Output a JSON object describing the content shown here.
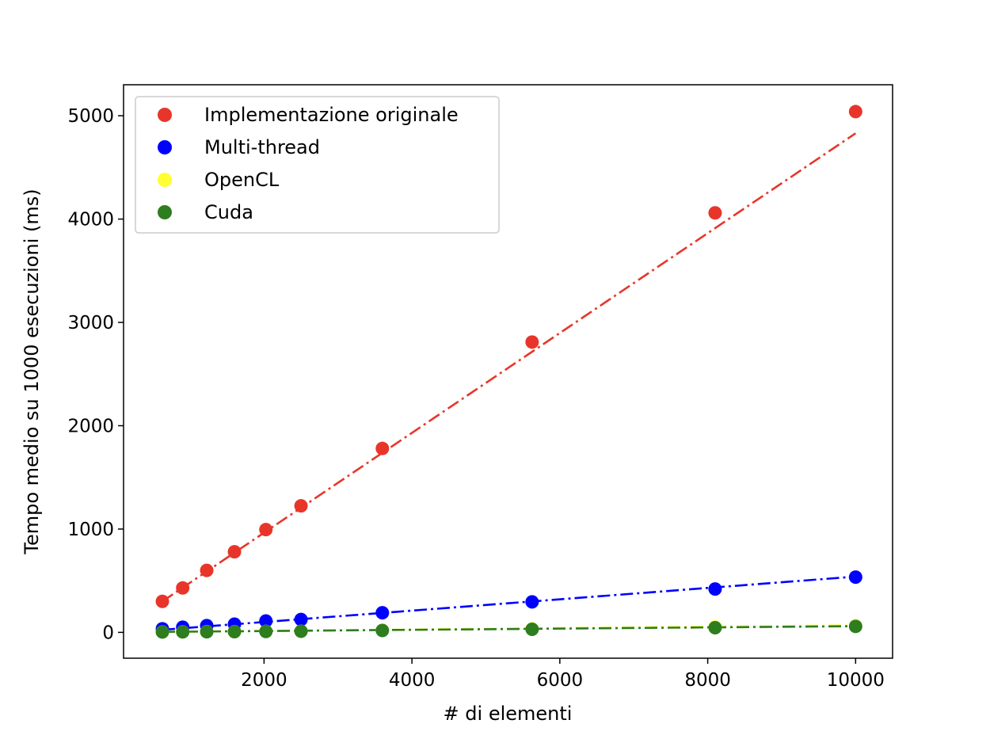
{
  "chart_data": {
    "type": "scatter",
    "title": "",
    "xlabel": "# di elementi",
    "ylabel": "Tempo medio su 1000 esecuzioni (ms)",
    "xlim": [
      100,
      10500
    ],
    "ylim": [
      -250,
      5300
    ],
    "xticks": [
      2000,
      4000,
      6000,
      8000,
      10000
    ],
    "yticks": [
      0,
      1000,
      2000,
      3000,
      4000,
      5000
    ],
    "grid": false,
    "legend_position": "top-left",
    "x": [
      625,
      900,
      1225,
      1600,
      2025,
      2500,
      3600,
      5625,
      8100,
      10000
    ],
    "series": [
      {
        "name": "Implementazione originale",
        "color": "#e8352a",
        "values": [
          300,
          430,
          600,
          780,
          995,
          1225,
          1780,
          2810,
          4060,
          5040
        ],
        "fit": [
          625,
          300,
          10000,
          4830
        ]
      },
      {
        "name": "Multi-thread",
        "color": "#0000ff",
        "values": [
          35,
          50,
          65,
          80,
          110,
          125,
          190,
          295,
          420,
          535
        ],
        "fit": [
          625,
          25,
          10000,
          540
        ]
      },
      {
        "name": "OpenCL",
        "color": "#ffff33",
        "values": [
          5,
          6,
          8,
          8,
          10,
          12,
          20,
          35,
          55,
          65
        ],
        "fit": [
          625,
          5,
          10000,
          68
        ]
      },
      {
        "name": "Cuda",
        "color": "#2e7d1f",
        "values": [
          4,
          5,
          6,
          7,
          9,
          11,
          18,
          30,
          45,
          58
        ],
        "fit": [
          625,
          5,
          10000,
          60
        ]
      }
    ]
  }
}
